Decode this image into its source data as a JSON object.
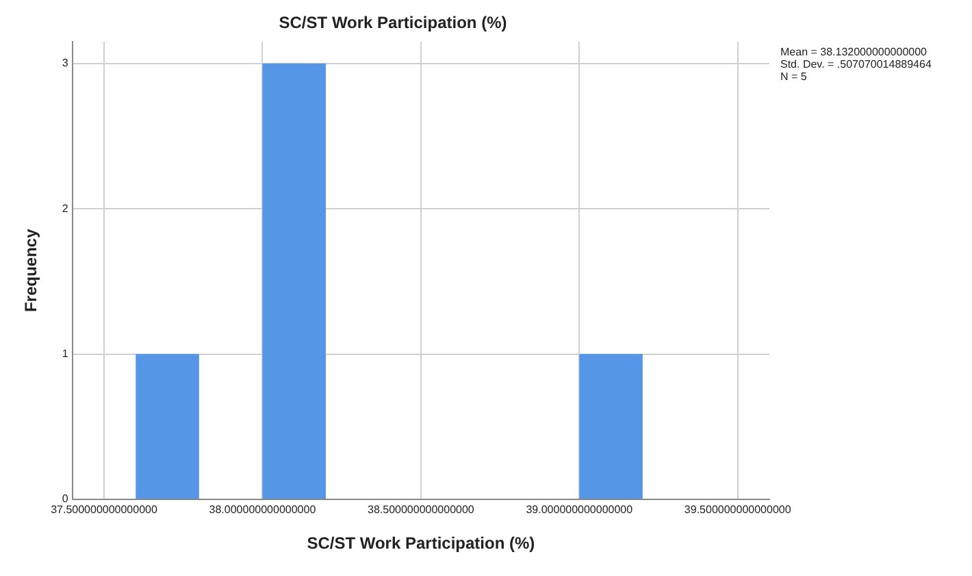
{
  "chart_data": {
    "type": "histogram",
    "title": "SC/ST Work Participation (%)",
    "xlabel": "SC/ST Work Participation (%)",
    "ylabel": "Frequency",
    "bins": [
      37.6,
      37.8,
      38.0,
      38.2,
      38.4,
      38.6,
      38.8,
      39.0,
      39.2
    ],
    "values": [
      1,
      0,
      3,
      0,
      0,
      0,
      0,
      1
    ],
    "color": "#5596e6",
    "xlim": [
      37.4,
      39.6
    ],
    "xticks": [
      {
        "value": 37.5,
        "label": "37.500000000000000"
      },
      {
        "value": 38.0,
        "label": "38.000000000000000"
      },
      {
        "value": 38.5,
        "label": "38.500000000000000"
      },
      {
        "value": 39.0,
        "label": "39.000000000000000"
      },
      {
        "value": 39.5,
        "label": "39.500000000000000"
      }
    ],
    "ylim": [
      0,
      3.15
    ],
    "yticks": [
      0,
      1,
      2,
      3
    ],
    "grid": true,
    "annotations": [
      "Mean = 38.132000000000000",
      "Std. Dev. = .507070014889464",
      "N = 5"
    ]
  }
}
